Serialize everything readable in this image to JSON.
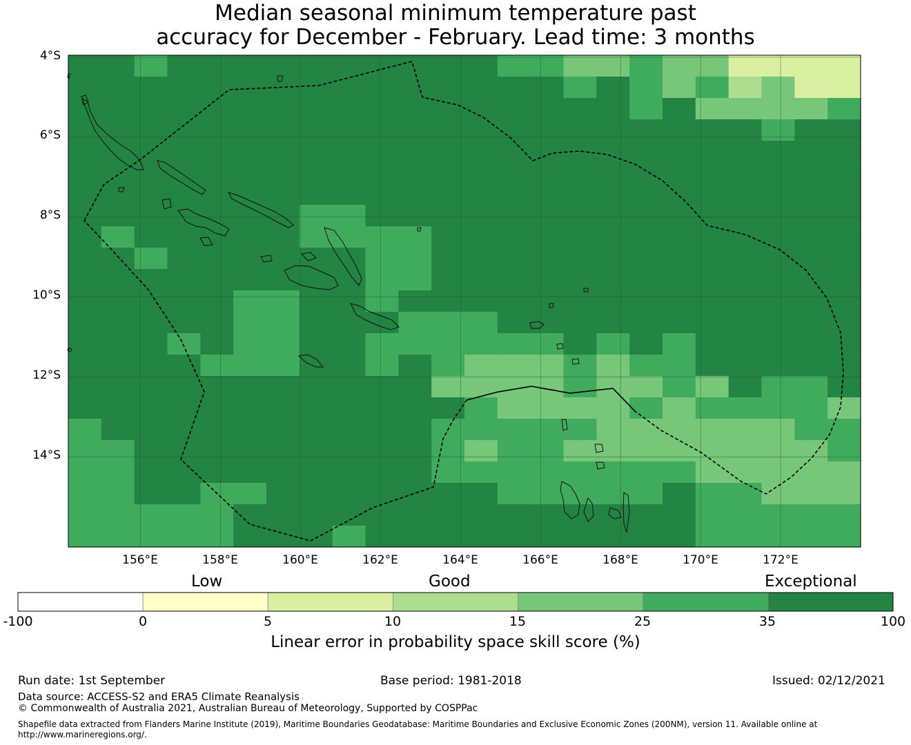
{
  "title": {
    "line1": "Median seasonal minimum temperature past",
    "line2": "accuracy for December - February. Lead time: 3 months"
  },
  "map": {
    "extent": {
      "lon_min": 154.2,
      "lon_max": 174.0,
      "lat_top": -3.95,
      "lat_bottom": -16.25
    },
    "cell_deg": 0.834,
    "lat_labels": [
      "4°S",
      "6°S",
      "8°S",
      "10°S",
      "12°S",
      "14°S"
    ],
    "lat_values": [
      -4,
      -6,
      -8,
      -10,
      -12,
      -14
    ],
    "lon_labels": [
      "156°E",
      "158°E",
      "160°E",
      "162°E",
      "164°E",
      "166°E",
      "168°E",
      "170°E",
      "172°E"
    ],
    "lon_values": [
      156,
      158,
      160,
      162,
      164,
      166,
      168,
      170,
      172
    ],
    "colors": {
      "exceptional": "#238443",
      "c25_35": "#41ab5d",
      "c15_25": "#78c679",
      "c10_15": "#addd8e",
      "c5_10": "#d9f0a3",
      "c0_5": "#ffffcc",
      "neg": "#ffffff"
    },
    "default_class": 6,
    "grid_overrides": [
      [
        0,
        2,
        5
      ],
      [
        0,
        13,
        5
      ],
      [
        0,
        14,
        5
      ],
      [
        0,
        15,
        4
      ],
      [
        0,
        16,
        4
      ],
      [
        0,
        17,
        5
      ],
      [
        0,
        18,
        4
      ],
      [
        0,
        19,
        4
      ],
      [
        0,
        20,
        2
      ],
      [
        0,
        21,
        2
      ],
      [
        0,
        22,
        2
      ],
      [
        0,
        23,
        2
      ],
      [
        1,
        15,
        5
      ],
      [
        1,
        17,
        5
      ],
      [
        1,
        18,
        4
      ],
      [
        1,
        19,
        5
      ],
      [
        1,
        20,
        3
      ],
      [
        1,
        21,
        4
      ],
      [
        1,
        22,
        2
      ],
      [
        1,
        23,
        2
      ],
      [
        2,
        17,
        5
      ],
      [
        2,
        19,
        4
      ],
      [
        2,
        20,
        4
      ],
      [
        2,
        21,
        4
      ],
      [
        2,
        22,
        4
      ],
      [
        2,
        23,
        5
      ],
      [
        3,
        21,
        5
      ],
      [
        7,
        7,
        5
      ],
      [
        7,
        8,
        5
      ],
      [
        8,
        1,
        5
      ],
      [
        8,
        7,
        5
      ],
      [
        8,
        8,
        5
      ],
      [
        8,
        9,
        5
      ],
      [
        8,
        10,
        5
      ],
      [
        9,
        2,
        5
      ],
      [
        9,
        9,
        5
      ],
      [
        9,
        10,
        5
      ],
      [
        10,
        9,
        5
      ],
      [
        10,
        10,
        5
      ],
      [
        11,
        5,
        5
      ],
      [
        11,
        6,
        5
      ],
      [
        11,
        9,
        5
      ],
      [
        12,
        5,
        5
      ],
      [
        12,
        6,
        5
      ],
      [
        12,
        10,
        5
      ],
      [
        12,
        11,
        5
      ],
      [
        12,
        12,
        5
      ],
      [
        13,
        3,
        5
      ],
      [
        13,
        5,
        5
      ],
      [
        13,
        6,
        5
      ],
      [
        13,
        9,
        5
      ],
      [
        13,
        10,
        5
      ],
      [
        13,
        11,
        5
      ],
      [
        13,
        12,
        5
      ],
      [
        13,
        13,
        5
      ],
      [
        13,
        14,
        5
      ],
      [
        13,
        16,
        5
      ],
      [
        13,
        18,
        5
      ],
      [
        14,
        4,
        5
      ],
      [
        14,
        5,
        5
      ],
      [
        14,
        6,
        5
      ],
      [
        14,
        9,
        5
      ],
      [
        14,
        11,
        5
      ],
      [
        14,
        12,
        4
      ],
      [
        14,
        13,
        4
      ],
      [
        14,
        14,
        4
      ],
      [
        14,
        15,
        5
      ],
      [
        14,
        16,
        4
      ],
      [
        14,
        17,
        5
      ],
      [
        14,
        18,
        5
      ],
      [
        15,
        11,
        4
      ],
      [
        15,
        12,
        4
      ],
      [
        15,
        13,
        4
      ],
      [
        15,
        14,
        4
      ],
      [
        15,
        15,
        5
      ],
      [
        15,
        16,
        4
      ],
      [
        15,
        17,
        4
      ],
      [
        15,
        18,
        5
      ],
      [
        15,
        19,
        4
      ],
      [
        15,
        21,
        5
      ],
      [
        15,
        22,
        5
      ],
      [
        16,
        12,
        5
      ],
      [
        16,
        13,
        4
      ],
      [
        16,
        14,
        4
      ],
      [
        16,
        15,
        4
      ],
      [
        16,
        16,
        4
      ],
      [
        16,
        17,
        5
      ],
      [
        16,
        18,
        4
      ],
      [
        16,
        19,
        5
      ],
      [
        16,
        20,
        5
      ],
      [
        16,
        21,
        5
      ],
      [
        16,
        22,
        5
      ],
      [
        16,
        23,
        4
      ],
      [
        17,
        0,
        5
      ],
      [
        17,
        11,
        5
      ],
      [
        17,
        12,
        5
      ],
      [
        17,
        13,
        5
      ],
      [
        17,
        14,
        5
      ],
      [
        17,
        15,
        5
      ],
      [
        17,
        16,
        4
      ],
      [
        17,
        17,
        4
      ],
      [
        17,
        18,
        4
      ],
      [
        17,
        19,
        4
      ],
      [
        17,
        20,
        4
      ],
      [
        17,
        21,
        4
      ],
      [
        17,
        22,
        5
      ],
      [
        17,
        23,
        5
      ],
      [
        18,
        0,
        5
      ],
      [
        18,
        1,
        5
      ],
      [
        18,
        11,
        5
      ],
      [
        18,
        12,
        4
      ],
      [
        18,
        13,
        5
      ],
      [
        18,
        14,
        5
      ],
      [
        18,
        15,
        4
      ],
      [
        18,
        16,
        4
      ],
      [
        18,
        17,
        4
      ],
      [
        18,
        18,
        4
      ],
      [
        18,
        19,
        4
      ],
      [
        18,
        20,
        4
      ],
      [
        18,
        21,
        4
      ],
      [
        18,
        22,
        4
      ],
      [
        18,
        23,
        5
      ],
      [
        19,
        0,
        5
      ],
      [
        19,
        1,
        5
      ],
      [
        19,
        11,
        5
      ],
      [
        19,
        12,
        5
      ],
      [
        19,
        13,
        5
      ],
      [
        19,
        14,
        5
      ],
      [
        19,
        15,
        5
      ],
      [
        19,
        16,
        5
      ],
      [
        19,
        17,
        5
      ],
      [
        19,
        18,
        5
      ],
      [
        19,
        19,
        4
      ],
      [
        19,
        20,
        4
      ],
      [
        19,
        21,
        4
      ],
      [
        19,
        22,
        4
      ],
      [
        19,
        23,
        4
      ],
      [
        20,
        0,
        5
      ],
      [
        20,
        1,
        5
      ],
      [
        20,
        4,
        5
      ],
      [
        20,
        5,
        5
      ],
      [
        20,
        13,
        5
      ],
      [
        20,
        14,
        5
      ],
      [
        20,
        15,
        5
      ],
      [
        20,
        16,
        5
      ],
      [
        20,
        17,
        5
      ],
      [
        20,
        19,
        5
      ],
      [
        20,
        20,
        5
      ],
      [
        20,
        21,
        4
      ],
      [
        20,
        22,
        4
      ],
      [
        20,
        23,
        4
      ],
      [
        21,
        0,
        5
      ],
      [
        21,
        1,
        5
      ],
      [
        21,
        2,
        5
      ],
      [
        21,
        3,
        5
      ],
      [
        21,
        4,
        5
      ],
      [
        21,
        19,
        5
      ],
      [
        21,
        20,
        5
      ],
      [
        21,
        21,
        5
      ],
      [
        21,
        22,
        5
      ],
      [
        21,
        23,
        5
      ],
      [
        22,
        0,
        5
      ],
      [
        22,
        1,
        5
      ],
      [
        22,
        2,
        5
      ],
      [
        22,
        3,
        5
      ],
      [
        22,
        4,
        5
      ],
      [
        22,
        8,
        5
      ],
      [
        22,
        19,
        5
      ],
      [
        22,
        20,
        5
      ],
      [
        22,
        21,
        5
      ],
      [
        22,
        22,
        5
      ],
      [
        22,
        23,
        5
      ]
    ]
  },
  "colorbar": {
    "categories": {
      "low": "Low",
      "good": "Good",
      "exceptional": "Exceptional"
    },
    "ticks": [
      "-100",
      "0",
      "5",
      "10",
      "15",
      "25",
      "35",
      "100"
    ],
    "bins": [
      {
        "label": "-100 to 0",
        "color": "#ffffff"
      },
      {
        "label": "0 to 5",
        "color": "#ffffcc"
      },
      {
        "label": "5 to 10",
        "color": "#d9f0a3"
      },
      {
        "label": "10 to 15",
        "color": "#addd8e"
      },
      {
        "label": "15 to 25",
        "color": "#78c679"
      },
      {
        "label": "25 to 35",
        "color": "#41ab5d"
      },
      {
        "label": "35 to 100",
        "color": "#238443"
      }
    ],
    "title": "Linear error in probability space skill score (%)"
  },
  "footer": {
    "run_date": "Run date: 1st September",
    "base_period": "Base period: 1981-2018",
    "issued": "Issued: 02/12/2021",
    "data_source": "Data source: ACCESS-S2 and ERA5 Climate Reanalysis",
    "copyright": "© Commonwealth of Australia 2021, Australian Bureau of Meteorology, Supported by COSPPac",
    "shapefile_line1": "Shapefile data extracted from Flanders Marine Institute (2019), Maritime Boundaries Geodatabase: Maritime Boundaries and Exclusive Economic Zones (200NM), version 11. Available online at",
    "shapefile_line2": "http://www.marineregions.org/."
  }
}
